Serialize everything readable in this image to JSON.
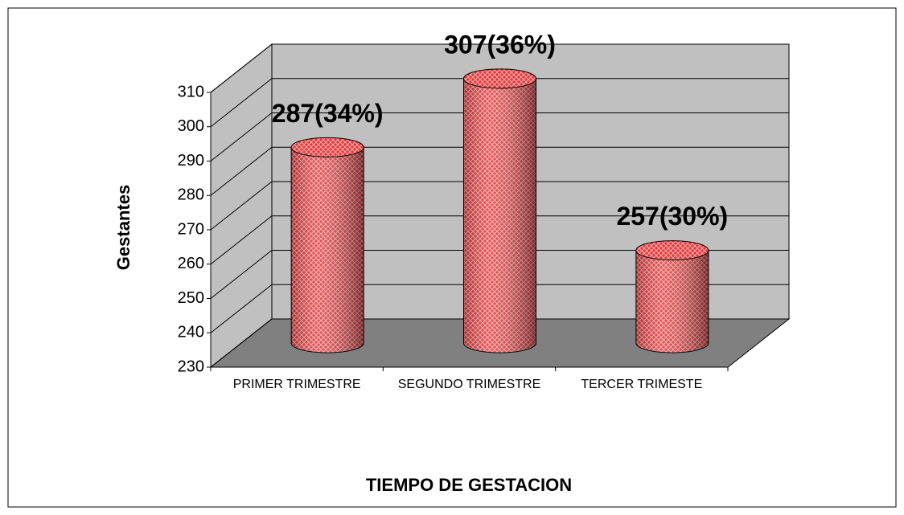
{
  "chart_data": {
    "type": "bar",
    "style": "3d-cylinder",
    "categories": [
      "PRIMER TRIMESTRE",
      "SEGUNDO TRIMESTRE",
      "TERCER TRIMESTE"
    ],
    "values": [
      287,
      307,
      257
    ],
    "value_labels": [
      "287(34%)",
      "307(36%)",
      "257(30%)"
    ],
    "color": "#e8383a",
    "y_label": "Gestantes",
    "x_label": "TIEMPO DE GESTACION",
    "ylim": [
      230,
      310
    ],
    "yticks": [
      230,
      240,
      250,
      260,
      270,
      280,
      290,
      300,
      310
    ],
    "grid": true
  }
}
